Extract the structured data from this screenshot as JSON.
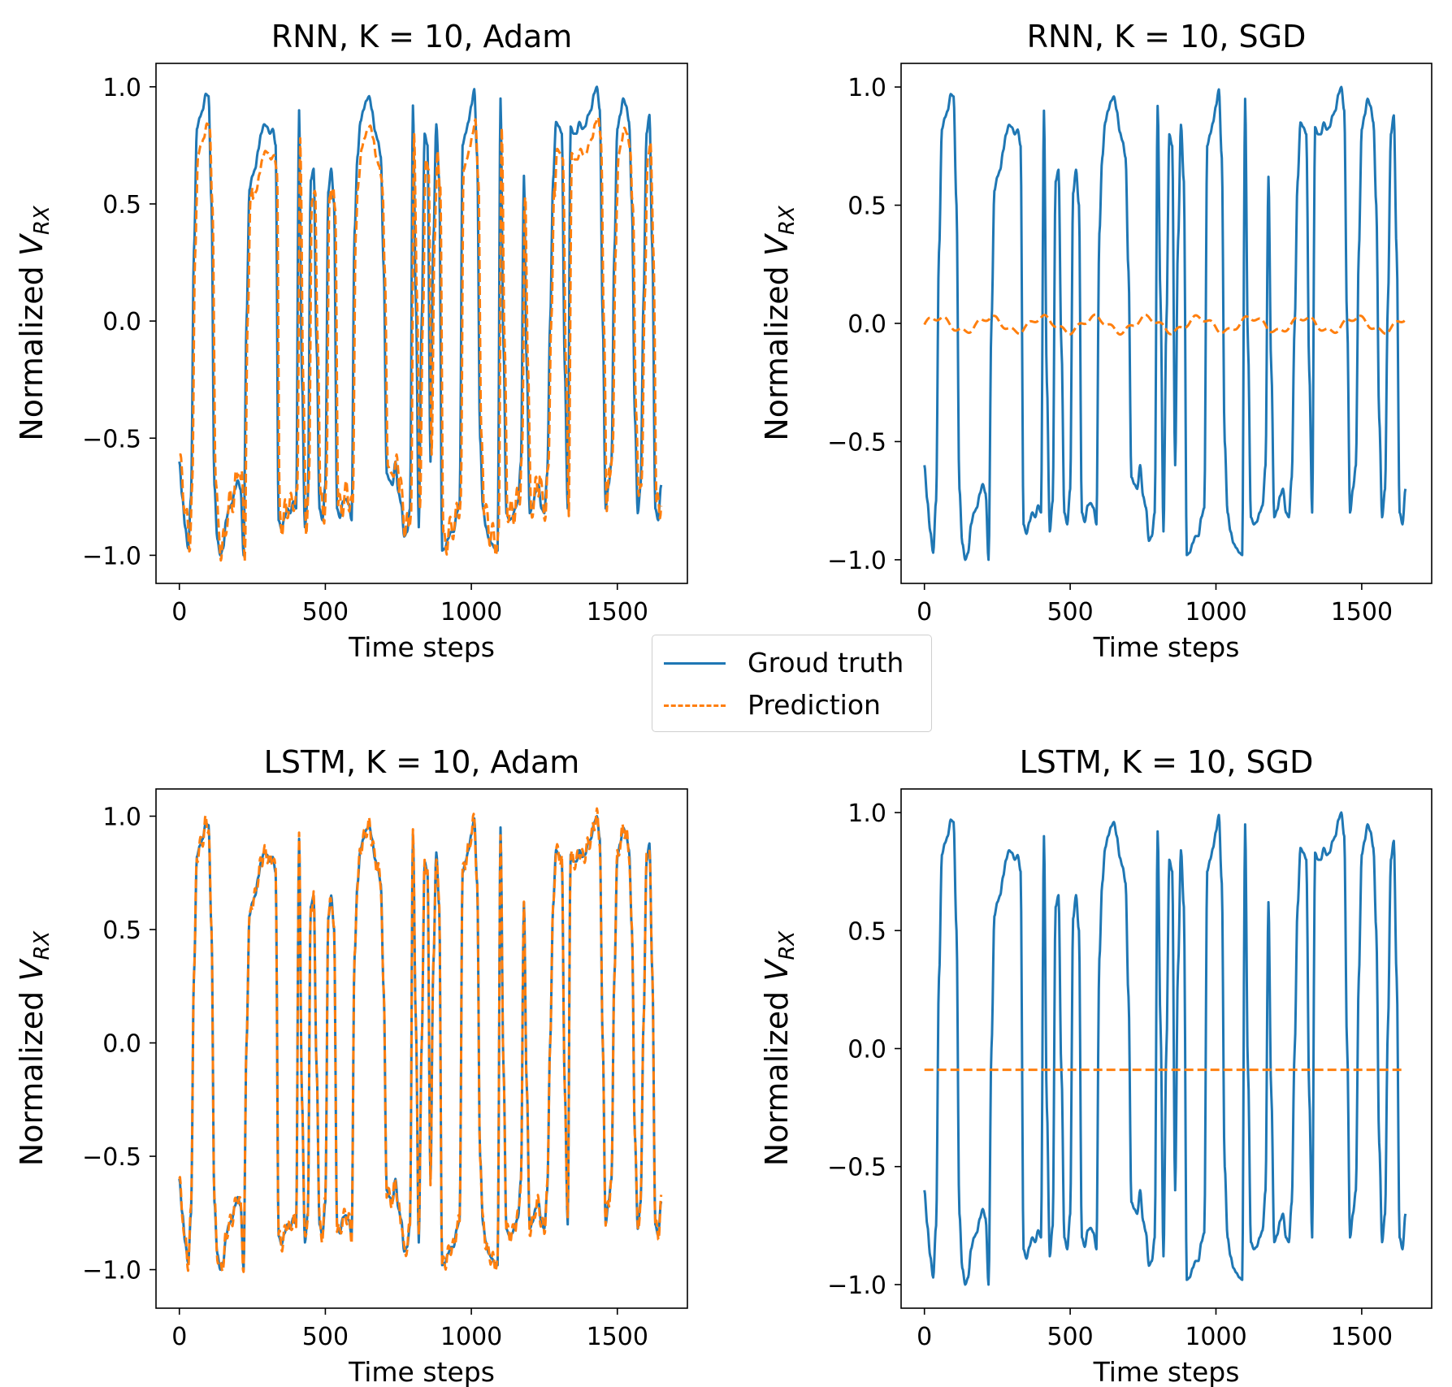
{
  "chart_data": [
    {
      "type": "line",
      "title": "RNN, K = 10, Adam",
      "xlabel": "Time steps",
      "ylabel_main": "Normalized V",
      "ylabel_sub": "RX",
      "xlim": [
        -80,
        1740
      ],
      "ylim": [
        -1.12,
        1.1
      ],
      "xticks": [
        "0",
        "500",
        "1000",
        "1500"
      ],
      "xtick_values": [
        0,
        500,
        1000,
        1500
      ],
      "yticks": [
        "1.0",
        "0.5",
        "0.0",
        "−0.5",
        "−1.0"
      ],
      "ytick_values": [
        1.0,
        0.5,
        0.0,
        -0.5,
        -1.0
      ],
      "series": [
        {
          "name": "Groud truth",
          "style": "solid",
          "mode": "truth"
        },
        {
          "name": "Prediction",
          "style": "dashed",
          "mode": "adam_rnn"
        }
      ]
    },
    {
      "type": "line",
      "title": "RNN, K = 10, SGD",
      "xlabel": "Time steps",
      "ylabel_main": "Normalized V",
      "ylabel_sub": "RX",
      "xlim": [
        -80,
        1740
      ],
      "ylim": [
        -1.1,
        1.1
      ],
      "xticks": [
        "0",
        "500",
        "1000",
        "1500"
      ],
      "xtick_values": [
        0,
        500,
        1000,
        1500
      ],
      "yticks": [
        "1.0",
        "0.5",
        "0.0",
        "−0.5",
        "−1.0"
      ],
      "ytick_values": [
        1.0,
        0.5,
        0.0,
        -0.5,
        -1.0
      ],
      "series": [
        {
          "name": "Groud truth",
          "style": "solid",
          "mode": "truth"
        },
        {
          "name": "Prediction",
          "style": "dashed",
          "mode": "sgd_rnn"
        }
      ]
    },
    {
      "type": "line",
      "title": "LSTM, K = 10, Adam",
      "xlabel": "Time steps",
      "ylabel_main": "Normalized V",
      "ylabel_sub": "RX",
      "xlim": [
        -80,
        1740
      ],
      "ylim": [
        -1.17,
        1.12
      ],
      "xticks": [
        "0",
        "500",
        "1000",
        "1500"
      ],
      "xtick_values": [
        0,
        500,
        1000,
        1500
      ],
      "yticks": [
        "1.0",
        "0.5",
        "0.0",
        "−0.5",
        "−1.0"
      ],
      "ytick_values": [
        1.0,
        0.5,
        0.0,
        -0.5,
        -1.0
      ],
      "series": [
        {
          "name": "Groud truth",
          "style": "solid",
          "mode": "truth"
        },
        {
          "name": "Prediction",
          "style": "dashed",
          "mode": "adam_lstm"
        }
      ]
    },
    {
      "type": "line",
      "title": "LSTM, K = 10, SGD",
      "xlabel": "Time steps",
      "ylabel_main": "Normalized V",
      "ylabel_sub": "RX",
      "xlim": [
        -80,
        1740
      ],
      "ylim": [
        -1.1,
        1.1
      ],
      "xticks": [
        "0",
        "500",
        "1000",
        "1500"
      ],
      "xtick_values": [
        0,
        500,
        1000,
        1500
      ],
      "yticks": [
        "1.0",
        "0.5",
        "0.0",
        "−0.5",
        "−1.0"
      ],
      "ytick_values": [
        1.0,
        0.5,
        0.0,
        -0.5,
        -1.0
      ],
      "series": [
        {
          "name": "Groud truth",
          "style": "solid",
          "mode": "truth"
        },
        {
          "name": "Prediction",
          "style": "dashed",
          "mode": "sgd_lstm",
          "constant": -0.09
        }
      ]
    }
  ],
  "ground_truth_keypoints": [
    [
      0,
      -0.6
    ],
    [
      10,
      -0.75
    ],
    [
      20,
      -0.88
    ],
    [
      30,
      -0.97
    ],
    [
      40,
      -0.75
    ],
    [
      50,
      0.3
    ],
    [
      60,
      0.82
    ],
    [
      70,
      0.87
    ],
    [
      80,
      0.9
    ],
    [
      90,
      0.97
    ],
    [
      100,
      0.96
    ],
    [
      110,
      0.5
    ],
    [
      120,
      -0.7
    ],
    [
      130,
      -0.93
    ],
    [
      140,
      -1.0
    ],
    [
      150,
      -0.97
    ],
    [
      160,
      -0.85
    ],
    [
      170,
      -0.8
    ],
    [
      180,
      -0.78
    ],
    [
      190,
      -0.72
    ],
    [
      200,
      -0.68
    ],
    [
      210,
      -0.72
    ],
    [
      220,
      -1.0
    ],
    [
      230,
      0.0
    ],
    [
      240,
      0.56
    ],
    [
      250,
      0.62
    ],
    [
      260,
      0.65
    ],
    [
      270,
      0.73
    ],
    [
      280,
      0.8
    ],
    [
      290,
      0.84
    ],
    [
      300,
      0.83
    ],
    [
      310,
      0.8
    ],
    [
      320,
      0.82
    ],
    [
      330,
      0.75
    ],
    [
      340,
      -0.85
    ],
    [
      350,
      -0.89
    ],
    [
      360,
      -0.84
    ],
    [
      370,
      -0.8
    ],
    [
      380,
      -0.82
    ],
    [
      390,
      -0.77
    ],
    [
      400,
      -0.8
    ],
    [
      410,
      0.9
    ],
    [
      420,
      -0.25
    ],
    [
      430,
      -0.88
    ],
    [
      440,
      -0.75
    ],
    [
      450,
      0.6
    ],
    [
      460,
      0.65
    ],
    [
      470,
      -0.1
    ],
    [
      480,
      -0.8
    ],
    [
      490,
      -0.85
    ],
    [
      500,
      -0.7
    ],
    [
      510,
      0.55
    ],
    [
      520,
      0.65
    ],
    [
      530,
      0.5
    ],
    [
      540,
      -0.8
    ],
    [
      550,
      -0.84
    ],
    [
      560,
      -0.77
    ],
    [
      570,
      -0.76
    ],
    [
      580,
      -0.78
    ],
    [
      590,
      -0.85
    ],
    [
      600,
      0.38
    ],
    [
      610,
      0.7
    ],
    [
      620,
      0.85
    ],
    [
      630,
      0.9
    ],
    [
      640,
      0.94
    ],
    [
      650,
      0.96
    ],
    [
      660,
      0.9
    ],
    [
      670,
      0.81
    ],
    [
      680,
      0.77
    ],
    [
      690,
      0.7
    ],
    [
      700,
      0.22
    ],
    [
      710,
      -0.65
    ],
    [
      720,
      -0.68
    ],
    [
      730,
      -0.7
    ],
    [
      740,
      -0.6
    ],
    [
      750,
      -0.73
    ],
    [
      760,
      -0.78
    ],
    [
      770,
      -0.92
    ],
    [
      780,
      -0.9
    ],
    [
      790,
      -0.8
    ],
    [
      800,
      0.92
    ],
    [
      810,
      0.1
    ],
    [
      820,
      -0.88
    ],
    [
      830,
      0.0
    ],
    [
      840,
      0.8
    ],
    [
      850,
      0.75
    ],
    [
      860,
      -0.6
    ],
    [
      870,
      0.35
    ],
    [
      880,
      0.84
    ],
    [
      890,
      0.6
    ],
    [
      900,
      -0.98
    ],
    [
      910,
      -0.97
    ],
    [
      920,
      -0.93
    ],
    [
      930,
      -0.9
    ],
    [
      940,
      -0.9
    ],
    [
      950,
      -0.82
    ],
    [
      960,
      -0.78
    ],
    [
      970,
      0.75
    ],
    [
      980,
      0.8
    ],
    [
      990,
      0.85
    ],
    [
      1000,
      0.92
    ],
    [
      1010,
      0.99
    ],
    [
      1020,
      0.7
    ],
    [
      1030,
      -0.5
    ],
    [
      1040,
      -0.8
    ],
    [
      1050,
      -0.88
    ],
    [
      1060,
      -0.93
    ],
    [
      1070,
      -0.95
    ],
    [
      1080,
      -0.97
    ],
    [
      1090,
      -0.98
    ],
    [
      1100,
      0.95
    ],
    [
      1110,
      -0.1
    ],
    [
      1120,
      -0.82
    ],
    [
      1130,
      -0.85
    ],
    [
      1140,
      -0.84
    ],
    [
      1150,
      -0.8
    ],
    [
      1160,
      -0.77
    ],
    [
      1170,
      -0.6
    ],
    [
      1180,
      0.62
    ],
    [
      1190,
      -0.2
    ],
    [
      1200,
      -0.82
    ],
    [
      1210,
      -0.79
    ],
    [
      1220,
      -0.73
    ],
    [
      1230,
      -0.7
    ],
    [
      1240,
      -0.8
    ],
    [
      1250,
      -0.82
    ],
    [
      1260,
      -0.65
    ],
    [
      1270,
      0.0
    ],
    [
      1280,
      0.6
    ],
    [
      1290,
      0.85
    ],
    [
      1300,
      0.83
    ],
    [
      1310,
      0.8
    ],
    [
      1320,
      -0.2
    ],
    [
      1330,
      -0.8
    ],
    [
      1340,
      0.83
    ],
    [
      1350,
      0.8
    ],
    [
      1360,
      0.8
    ],
    [
      1370,
      0.85
    ],
    [
      1380,
      0.82
    ],
    [
      1390,
      0.83
    ],
    [
      1400,
      0.88
    ],
    [
      1410,
      0.9
    ],
    [
      1420,
      0.97
    ],
    [
      1430,
      1.0
    ],
    [
      1440,
      0.9
    ],
    [
      1450,
      0.0
    ],
    [
      1460,
      -0.8
    ],
    [
      1470,
      -0.7
    ],
    [
      1480,
      -0.6
    ],
    [
      1490,
      0.3
    ],
    [
      1500,
      0.82
    ],
    [
      1510,
      0.88
    ],
    [
      1520,
      0.95
    ],
    [
      1530,
      0.92
    ],
    [
      1540,
      0.85
    ],
    [
      1550,
      0.5
    ],
    [
      1560,
      -0.4
    ],
    [
      1570,
      -0.82
    ],
    [
      1580,
      -0.7
    ],
    [
      1590,
      0.1
    ],
    [
      1600,
      0.8
    ],
    [
      1610,
      0.88
    ],
    [
      1620,
      0.3
    ],
    [
      1630,
      -0.8
    ],
    [
      1640,
      -0.85
    ],
    [
      1650,
      -0.7
    ]
  ],
  "legend": {
    "position": "center",
    "entries": [
      {
        "label": "Groud truth",
        "color": "#1f77b4",
        "style": "solid"
      },
      {
        "label": "Prediction",
        "color": "#ff7f0e",
        "style": "dashed"
      }
    ]
  },
  "colors": {
    "truth": "#1f77b4",
    "prediction": "#ff7f0e"
  }
}
